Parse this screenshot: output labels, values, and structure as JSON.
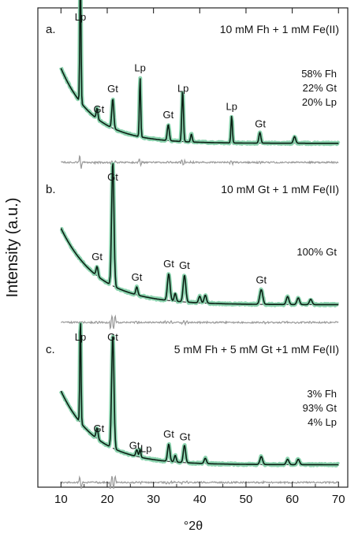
{
  "figure": {
    "ylabel": "Intensity (a.u.)",
    "xlabel": "°2θ",
    "colors": {
      "observed": "#7fcfa6",
      "fit": "#0b1f14",
      "residual": "#9a9a9a",
      "background": "#111111",
      "frame": "#222222"
    }
  },
  "chart_data": [
    {
      "type": "line",
      "panel_label": "a.",
      "title": "10 mM Fh + 1 mM Fe(II)",
      "composition": [
        "58% Fh",
        "22% Gt",
        "20% Lp"
      ],
      "xlim": [
        5,
        72
      ],
      "x_ticks": [
        10,
        20,
        30,
        40,
        50,
        60,
        70
      ],
      "background": {
        "start": 0.62,
        "floor": 0.06,
        "decay": 7
      },
      "peaks": [
        {
          "x": 14.2,
          "height": 0.98,
          "label": "Lp",
          "width": 0.18
        },
        {
          "x": 17.8,
          "height": 0.08,
          "label": "",
          "width": 0.25
        },
        {
          "x": 21.2,
          "height": 0.22,
          "label": "Gt",
          "width": 0.3
        },
        {
          "x": 27.1,
          "height": 0.44,
          "label": "Lp",
          "width": 0.2
        },
        {
          "x": 33.2,
          "height": 0.12,
          "label": "Gt",
          "width": 0.3
        },
        {
          "x": 36.3,
          "height": 0.38,
          "label": "Lp",
          "width": 0.25
        },
        {
          "x": 38.2,
          "height": 0.06,
          "label": "",
          "width": 0.25
        },
        {
          "x": 46.9,
          "height": 0.2,
          "label": "Lp",
          "width": 0.22
        },
        {
          "x": 53.0,
          "height": 0.08,
          "label": "Gt",
          "width": 0.3
        },
        {
          "x": 60.5,
          "height": 0.05,
          "label": "",
          "width": 0.35
        }
      ],
      "peak_labels": [
        {
          "text": "Lp",
          "x": 14.2
        },
        {
          "text": "Gt",
          "x": 18.2
        },
        {
          "text": "Gt",
          "x": 21.2
        },
        {
          "text": "Lp",
          "x": 27.1
        },
        {
          "text": "Gt",
          "x": 33.2
        },
        {
          "text": "Lp",
          "x": 36.4
        },
        {
          "text": "Lp",
          "x": 46.9
        },
        {
          "text": "Gt",
          "x": 53.1
        }
      ]
    },
    {
      "type": "line",
      "panel_label": "b.",
      "title": "10 mM Gt + 1 mM Fe(II)",
      "composition": [
        "100% Gt"
      ],
      "xlim": [
        5,
        72
      ],
      "x_ticks": [
        10,
        20,
        30,
        40,
        50,
        60,
        70
      ],
      "background": {
        "start": 0.62,
        "floor": 0.05,
        "decay": 8
      },
      "peaks": [
        {
          "x": 17.8,
          "height": 0.07,
          "label": "Gt",
          "width": 0.3
        },
        {
          "x": 21.2,
          "height": 0.93,
          "label": "Gt",
          "width": 0.35
        },
        {
          "x": 26.4,
          "height": 0.06,
          "label": "Gt",
          "width": 0.3
        },
        {
          "x": 33.3,
          "height": 0.2,
          "label": "Gt",
          "width": 0.4
        },
        {
          "x": 34.7,
          "height": 0.06,
          "label": "",
          "width": 0.3
        },
        {
          "x": 36.7,
          "height": 0.2,
          "label": "Gt",
          "width": 0.4
        },
        {
          "x": 40.0,
          "height": 0.05,
          "label": "",
          "width": 0.35
        },
        {
          "x": 41.2,
          "height": 0.06,
          "label": "",
          "width": 0.35
        },
        {
          "x": 53.3,
          "height": 0.11,
          "label": "Gt",
          "width": 0.45
        },
        {
          "x": 59.0,
          "height": 0.06,
          "label": "",
          "width": 0.4
        },
        {
          "x": 61.3,
          "height": 0.05,
          "label": "",
          "width": 0.4
        },
        {
          "x": 64.0,
          "height": 0.04,
          "label": "",
          "width": 0.4
        }
      ],
      "peak_labels": [
        {
          "text": "Gt",
          "x": 21.2
        },
        {
          "text": "Gt",
          "x": 17.8
        },
        {
          "text": "Gt",
          "x": 26.4
        },
        {
          "text": "Gt",
          "x": 33.3
        },
        {
          "text": "Gt",
          "x": 36.7
        },
        {
          "text": "Gt",
          "x": 53.3
        }
      ]
    },
    {
      "type": "line",
      "panel_label": "c.",
      "title": "5 mM Fh +  5 mM Gt +1 mM Fe(II)",
      "composition": [
        "3% Fh",
        "93% Gt",
        "4% Lp"
      ],
      "xlim": [
        5,
        72
      ],
      "x_ticks": [
        10,
        20,
        30,
        40,
        50,
        60,
        70
      ],
      "background": {
        "start": 0.6,
        "floor": 0.05,
        "decay": 7.5
      },
      "peaks": [
        {
          "x": 14.2,
          "height": 0.8,
          "label": "Lp",
          "width": 0.18
        },
        {
          "x": 17.8,
          "height": 0.08,
          "label": "Gt",
          "width": 0.3
        },
        {
          "x": 21.2,
          "height": 0.85,
          "label": "Gt",
          "width": 0.35
        },
        {
          "x": 26.4,
          "height": 0.05,
          "label": "Gt",
          "width": 0.3
        },
        {
          "x": 27.1,
          "height": 0.06,
          "label": "Lp",
          "width": 0.22
        },
        {
          "x": 33.3,
          "height": 0.13,
          "label": "Gt",
          "width": 0.35
        },
        {
          "x": 34.7,
          "height": 0.05,
          "label": "",
          "width": 0.3
        },
        {
          "x": 36.7,
          "height": 0.13,
          "label": "Gt",
          "width": 0.35
        },
        {
          "x": 41.2,
          "height": 0.04,
          "label": "",
          "width": 0.35
        },
        {
          "x": 53.3,
          "height": 0.06,
          "label": "",
          "width": 0.4
        },
        {
          "x": 59.0,
          "height": 0.04,
          "label": "",
          "width": 0.4
        },
        {
          "x": 61.3,
          "height": 0.04,
          "label": "",
          "width": 0.4
        }
      ],
      "peak_labels": [
        {
          "text": "Lp",
          "x": 14.2
        },
        {
          "text": "Gt",
          "x": 21.2
        },
        {
          "text": "Gt",
          "x": 18.2
        },
        {
          "text": "Gt",
          "x": 25.9
        },
        {
          "text": "Lp",
          "x": 28.4
        },
        {
          "text": "Gt",
          "x": 33.3
        },
        {
          "text": "Gt",
          "x": 36.8
        }
      ]
    }
  ]
}
